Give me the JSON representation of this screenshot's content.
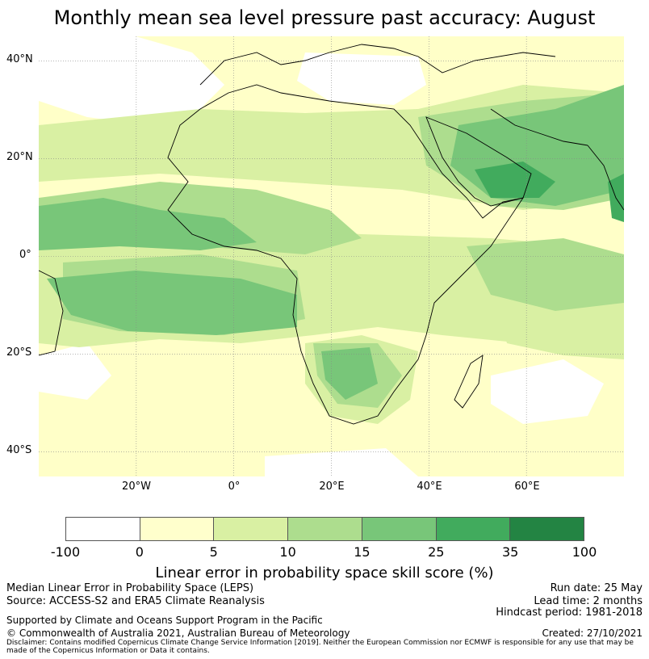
{
  "title": "Monthly mean sea level pressure past accuracy: August",
  "map": {
    "lat_labels": [
      "40°N",
      "20°N",
      "0°",
      "20°S",
      "40°S"
    ],
    "lon_labels": [
      "20°W",
      "0°",
      "20°E",
      "40°E",
      "60°E"
    ],
    "lat_range": [
      -45,
      45
    ],
    "lon_range": [
      -40,
      80
    ],
    "colors": {
      "ocean_bg": "#ffffc8",
      "band_0": "#ffffff",
      "band_1": "#ffffcc",
      "band_2": "#d9f0a3",
      "band_3": "#addd8e",
      "band_4": "#78c679",
      "band_5": "#41ab5d",
      "band_6": "#238443",
      "coastline": "#000000",
      "grid": "#888888"
    }
  },
  "colorbar": {
    "ticks": [
      "-100",
      "0",
      "5",
      "10",
      "15",
      "25",
      "35",
      "100"
    ],
    "colors": [
      "#ffffff",
      "#ffffcc",
      "#d9f0a3",
      "#addd8e",
      "#78c679",
      "#41ab5d",
      "#238443"
    ],
    "label": "Linear error in probability space skill score (%)"
  },
  "footer": {
    "left_line1": "Median Linear Error in Probability Space (LEPS)",
    "left_line2": "Source: ACCESS-S2 and ERA5 Climate Reanalysis",
    "left_line3": "Supported by Climate and Oceans Support Program in the Pacific",
    "left_line4": "© Commonwealth of Australia 2021, Australian Bureau of Meteorology",
    "right_line1": "Run date: 25 May",
    "right_line2": "Lead time: 2 months",
    "right_line3": "Hindcast period: 1981-2018",
    "right_line4": "Created: 27/10/2021",
    "disclaimer": "Disclaimer: Contains modified Copernicus Climate Change Service Information [2019]. Neither the European Commission nor ECMWF is responsible for any use that may be made of the Copernicus Information or Data it contains."
  }
}
